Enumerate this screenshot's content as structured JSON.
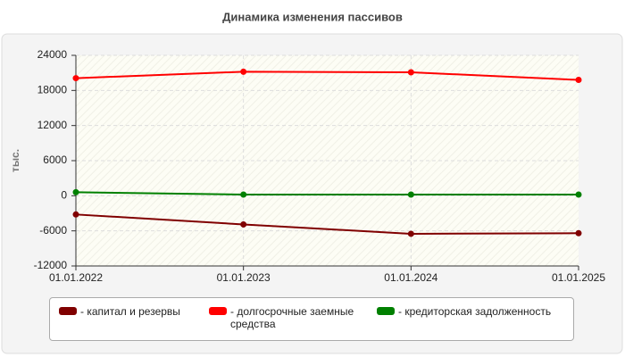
{
  "chart_data": {
    "type": "line",
    "title": "Динамика изменения пассивов",
    "ylabel": "тыс.",
    "categories": [
      "01.01.2022",
      "01.01.2023",
      "01.01.2024",
      "01.01.2025"
    ],
    "series": [
      {
        "name": "- капитал и резервы",
        "color": "#800000",
        "values": [
          -3200,
          -4900,
          -6500,
          -6400
        ]
      },
      {
        "name": "- долгосрочные заемные средства",
        "color": "#ff0000",
        "values": [
          20100,
          21200,
          21100,
          19800
        ]
      },
      {
        "name": "- кредиторская задолженность",
        "color": "#008000",
        "values": [
          600,
          200,
          200,
          200
        ]
      }
    ],
    "ylim": [
      -12000,
      24000
    ],
    "yticks": [
      -12000,
      -6000,
      0,
      6000,
      12000,
      18000,
      24000
    ],
    "grid": true
  }
}
